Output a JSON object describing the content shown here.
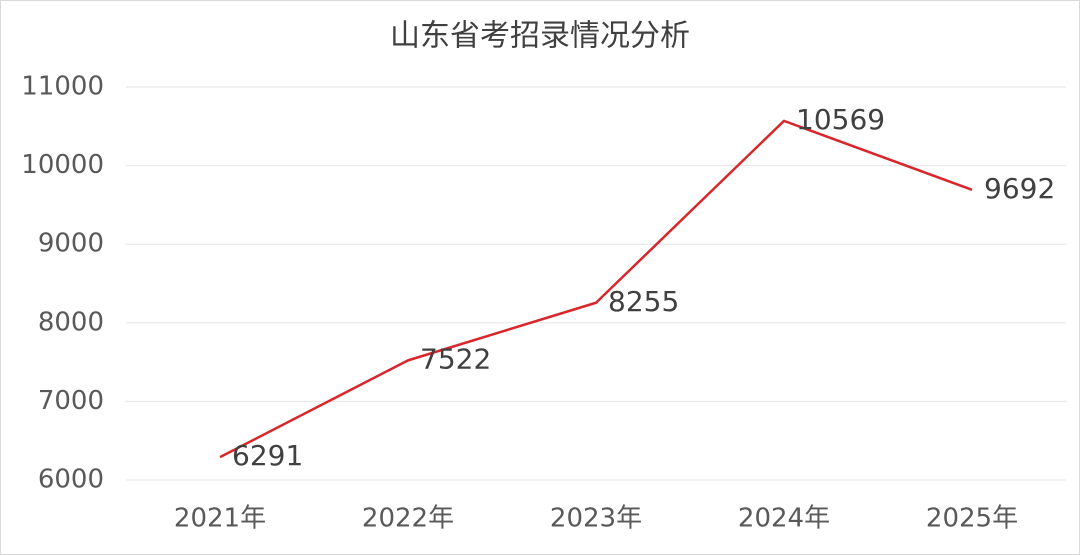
{
  "chart_data": {
    "type": "line",
    "title": "山东省考招录情况分析",
    "categories": [
      "2021年",
      "2022年",
      "2023年",
      "2024年",
      "2025年"
    ],
    "values": [
      6291,
      7522,
      8255,
      10569,
      9692
    ],
    "color": "#d9262b",
    "ylim": [
      6000,
      11000
    ],
    "yticks": [
      6000,
      7000,
      8000,
      9000,
      10000,
      11000
    ],
    "grid": true
  }
}
